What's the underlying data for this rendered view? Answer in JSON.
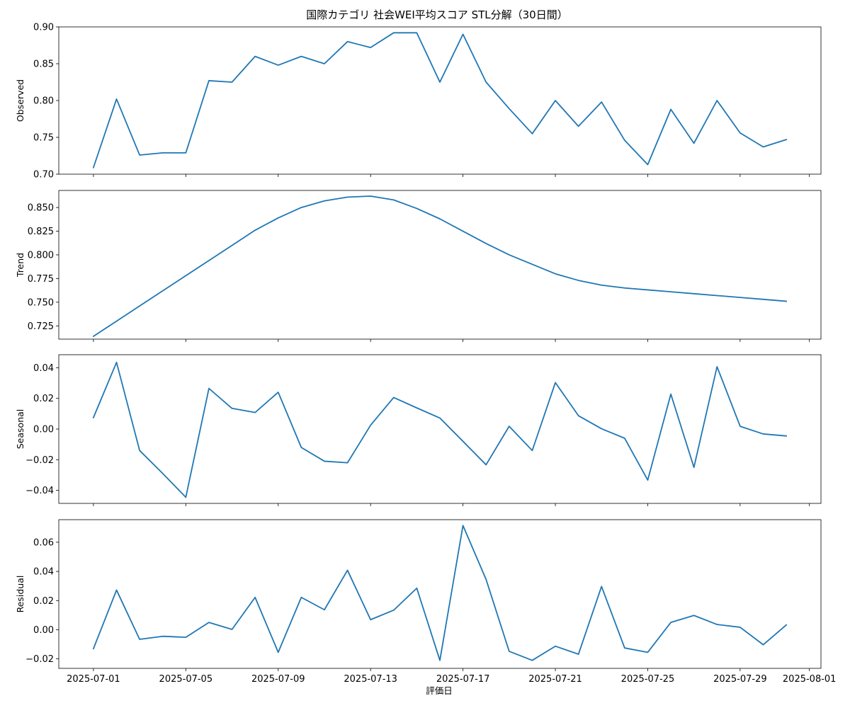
{
  "chart_data": {
    "type": "line",
    "title": "国際カテゴリ 社会WEI平均スコア STL分解（30日間）",
    "xlabel": "評価日",
    "line_color": "#1f77b4",
    "grid": false,
    "x": [
      "2025-07-01",
      "2025-07-02",
      "2025-07-03",
      "2025-07-04",
      "2025-07-05",
      "2025-07-06",
      "2025-07-07",
      "2025-07-08",
      "2025-07-09",
      "2025-07-10",
      "2025-07-11",
      "2025-07-12",
      "2025-07-13",
      "2025-07-14",
      "2025-07-15",
      "2025-07-16",
      "2025-07-17",
      "2025-07-18",
      "2025-07-19",
      "2025-07-20",
      "2025-07-21",
      "2025-07-22",
      "2025-07-23",
      "2025-07-24",
      "2025-07-25",
      "2025-07-26",
      "2025-07-27",
      "2025-07-28",
      "2025-07-29",
      "2025-07-30",
      "2025-07-31"
    ],
    "xlim": [
      "2025-06-29.5",
      "2025-08-01.5"
    ],
    "x_ticks": [
      "2025-07-01",
      "2025-07-05",
      "2025-07-09",
      "2025-07-13",
      "2025-07-17",
      "2025-07-21",
      "2025-07-25",
      "2025-07-29",
      "2025-08-01"
    ],
    "x_tick_labels": [
      "2025-07-01",
      "2025-07-05",
      "2025-07-09",
      "2025-07-13",
      "2025-07-17",
      "2025-07-21",
      "2025-07-25",
      "2025-07-29",
      "2025-08-01"
    ],
    "panels": [
      {
        "ylabel": "Observed",
        "ylim": [
          0.7,
          0.9
        ],
        "yticks": [
          0.7,
          0.75,
          0.8,
          0.85,
          0.9
        ],
        "ytick_labels": [
          "0.70",
          "0.75",
          "0.80",
          "0.85",
          "0.90"
        ],
        "values": [
          0.709,
          0.802,
          0.726,
          0.729,
          0.729,
          0.827,
          0.825,
          0.86,
          0.848,
          0.86,
          0.85,
          0.88,
          0.872,
          0.892,
          0.892,
          0.825,
          0.89,
          0.825,
          0.789,
          0.755,
          0.8,
          0.765,
          0.798,
          0.746,
          0.713,
          0.788,
          0.742,
          0.8,
          0.756,
          0.737,
          0.747
        ]
      },
      {
        "ylabel": "Trend",
        "ylim": [
          0.711,
          0.868
        ],
        "yticks": [
          0.725,
          0.75,
          0.775,
          0.8,
          0.825,
          0.85
        ],
        "ytick_labels": [
          "0.725",
          "0.750",
          "0.775",
          "0.800",
          "0.825",
          "0.850"
        ],
        "values": [
          0.714,
          0.73,
          0.746,
          0.762,
          0.778,
          0.794,
          0.81,
          0.826,
          0.839,
          0.85,
          0.857,
          0.861,
          0.862,
          0.858,
          0.849,
          0.838,
          0.825,
          0.812,
          0.8,
          0.79,
          0.78,
          0.773,
          0.768,
          0.765,
          0.763,
          0.761,
          0.759,
          0.757,
          0.755,
          0.753,
          0.751
        ]
      },
      {
        "ylabel": "Seasonal",
        "ylim": [
          -0.0485,
          0.0485
        ],
        "yticks": [
          -0.04,
          -0.02,
          0.0,
          0.02,
          0.04
        ],
        "ytick_labels": [
          "−0.04",
          "−0.02",
          "0.00",
          "0.02",
          "0.04"
        ],
        "values": [
          0.0075,
          0.0435,
          -0.014,
          -0.029,
          -0.0445,
          0.0265,
          0.0135,
          0.0108,
          0.024,
          -0.012,
          -0.021,
          -0.022,
          0.0025,
          0.0206,
          0.0138,
          0.0072,
          -0.008,
          -0.0233,
          0.0018,
          -0.014,
          0.0303,
          0.0087,
          0.0002,
          -0.006,
          -0.0333,
          0.0228,
          -0.025,
          0.0407,
          0.0018,
          -0.0032,
          -0.0045
        ]
      },
      {
        "ylabel": "Residual",
        "ylim": [
          -0.0265,
          0.0755
        ],
        "yticks": [
          -0.02,
          0.0,
          0.02,
          0.04,
          0.06
        ],
        "ytick_labels": [
          "−0.02",
          "0.00",
          "0.02",
          "0.04",
          "0.06"
        ],
        "values": [
          -0.013,
          0.0272,
          -0.0066,
          -0.0045,
          -0.0052,
          0.005,
          0.0002,
          0.0222,
          -0.0155,
          0.0222,
          0.0137,
          0.0408,
          0.0069,
          0.0134,
          0.0285,
          -0.021,
          0.0715,
          0.0345,
          -0.0148,
          -0.021,
          -0.0113,
          -0.0168,
          0.0297,
          -0.0125,
          -0.0155,
          0.005,
          0.0098,
          0.0036,
          0.0017,
          -0.0103,
          0.0033
        ]
      }
    ]
  }
}
